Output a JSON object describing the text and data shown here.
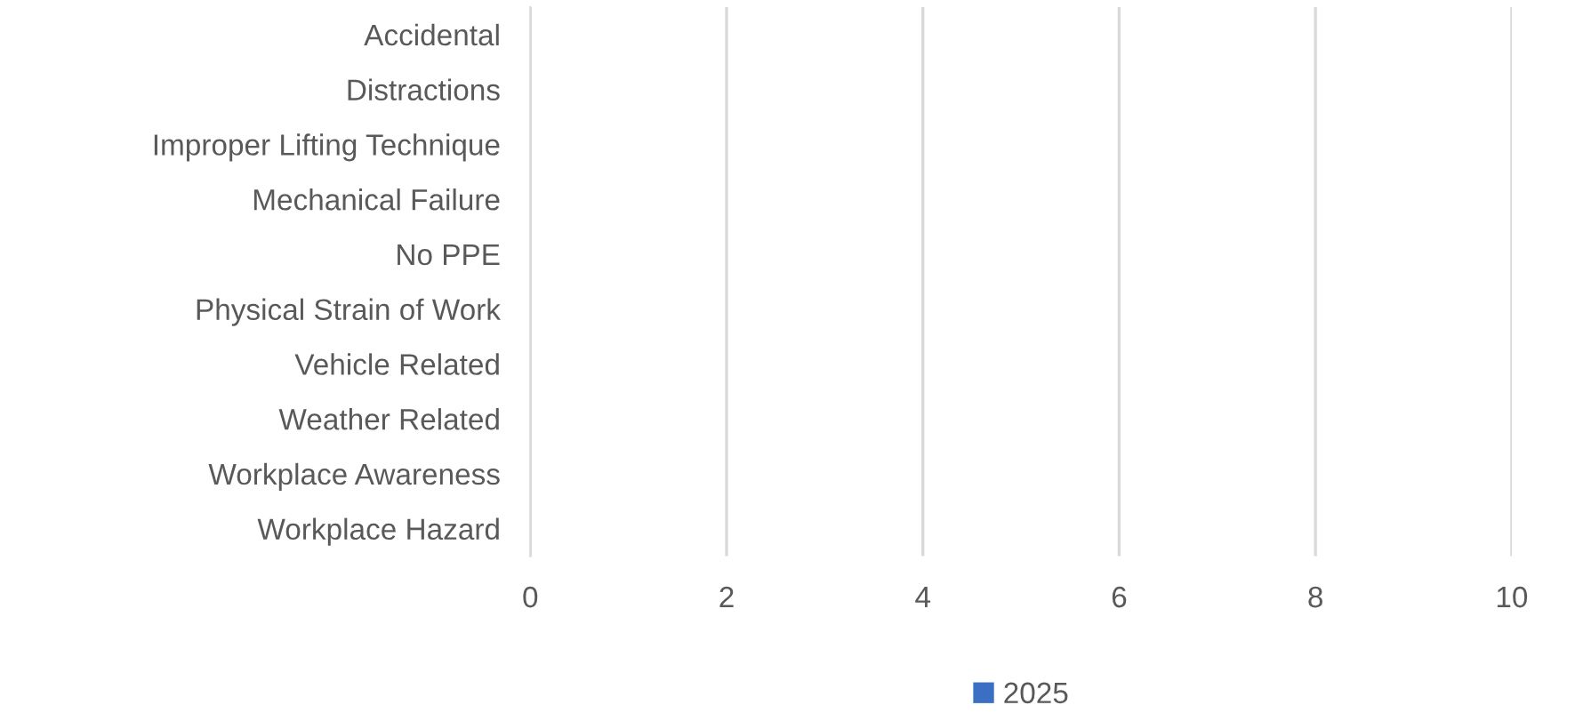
{
  "chart_data": {
    "type": "bar",
    "orientation": "horizontal",
    "categories": [
      "Accidental",
      "Distractions",
      "Improper Lifting Technique",
      "Mechanical Failure",
      "No PPE",
      "Physical Strain of Work",
      "Vehicle Related",
      "Weather Related",
      "Workplace Awareness",
      "Workplace Hazard"
    ],
    "series": [
      {
        "name": "2025",
        "color": "#3a6fc4",
        "values": [
          0,
          0,
          0,
          0,
          0,
          0,
          0,
          0,
          0,
          0
        ]
      }
    ],
    "xlim": [
      0,
      10
    ],
    "xticks": [
      0,
      2,
      4,
      6,
      8,
      10
    ],
    "grid": "x",
    "legend": "bottom"
  }
}
